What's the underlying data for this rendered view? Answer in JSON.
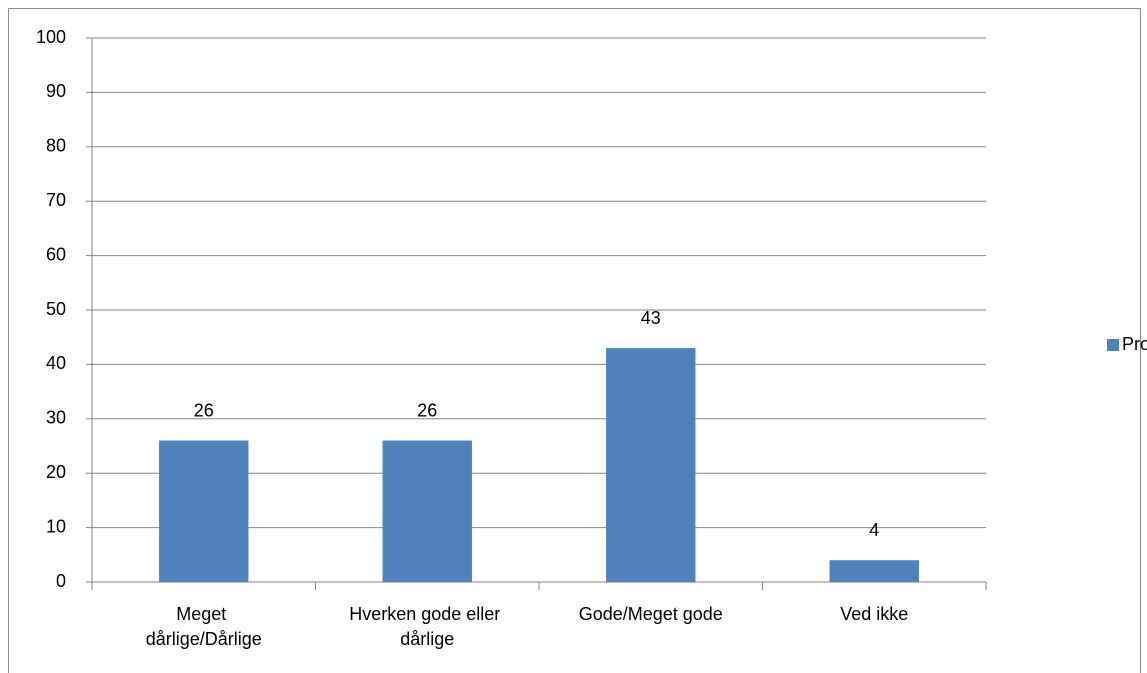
{
  "chart_data": {
    "type": "bar",
    "categories": [
      "Meget dårlige/Dårlige",
      "Hverken gode eller dårlige",
      "Gode/Meget gode",
      "Ved ikke"
    ],
    "series": [
      {
        "name": "Procent",
        "color": "#4f81bd",
        "values": [
          26,
          26,
          43,
          4
        ]
      }
    ],
    "ylim": [
      0,
      100
    ],
    "yticks": [
      0,
      10,
      20,
      30,
      40,
      50,
      60,
      70,
      80,
      90,
      100
    ],
    "grid": true,
    "legend": "right"
  }
}
